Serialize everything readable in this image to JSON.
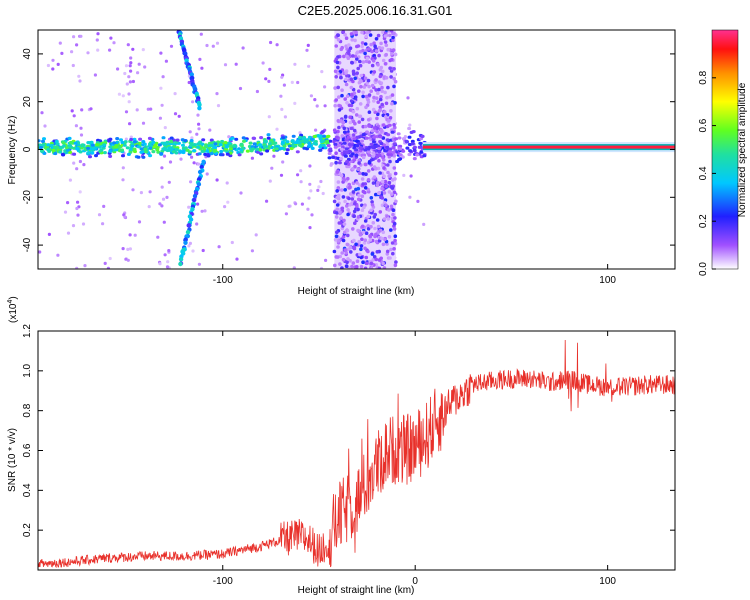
{
  "title": "C2E5.2025.006.16.31.G01",
  "chart_data": [
    {
      "type": "heatmap",
      "xlabel": "Height of straight line (km)",
      "ylabel": "Frequency (Hz)",
      "xlim": [
        -196,
        135
      ],
      "ylim": [
        -50,
        50
      ],
      "xticks": [
        -100,
        100
      ],
      "xtick_labels": [
        "-100",
        "100"
      ],
      "yticks": [
        -40,
        -20,
        0,
        20,
        40
      ],
      "ytick_labels": [
        "-40",
        "-20",
        "0",
        "20",
        "40"
      ],
      "features": [
        {
          "name": "central-band",
          "x_from": -196,
          "x_to": 5,
          "frequency": 1,
          "note": "noisy band around 0 Hz rising to ~4 Hz near -50 km"
        },
        {
          "name": "tone",
          "x_from": 4,
          "x_to": 135,
          "frequency": 1,
          "amplitude": 1.0
        },
        {
          "name": "diagonal-streak-upper",
          "x_from": -123,
          "x_to": -112,
          "f_from": 50,
          "f_to": 18
        },
        {
          "name": "diagonal-streak-lower",
          "x_from": -110,
          "x_to": -122,
          "f_from": -5,
          "f_to": -48
        },
        {
          "name": "broadband-noise",
          "x_from": -42,
          "x_to": -10,
          "note": "broadband speckle over all frequencies"
        }
      ],
      "colorbar": {
        "label": "Normalized spectral amplitude",
        "range": [
          0,
          1
        ],
        "ticks": [
          0.0,
          0.2,
          0.4,
          0.6,
          0.8
        ],
        "tick_labels": [
          "0.0",
          "0.2",
          "0.4",
          "0.6",
          "0.8"
        ]
      }
    },
    {
      "type": "line",
      "xlabel": "Height of straight line (km)",
      "ylabel": "SNR (10 * v/v)",
      "yscale_label": "(x10",
      "yscale_exp": "4",
      "yscale_close": ")",
      "xlim": [
        -196,
        135
      ],
      "ylim": [
        0,
        12000
      ],
      "xticks": [
        -100,
        0,
        100
      ],
      "xtick_labels": [
        "-100",
        "0",
        "100"
      ],
      "yticks": [
        2000,
        4000,
        6000,
        8000,
        10000,
        12000
      ],
      "ytick_labels": [
        "0.2",
        "0.4",
        "0.6",
        "0.8",
        "1.0",
        "1.2"
      ],
      "color": "#e8302a",
      "series": [
        {
          "name": "SNR",
          "x": [
            -196,
            -180,
            -160,
            -140,
            -120,
            -100,
            -90,
            -80,
            -70,
            -60,
            -55,
            -50,
            -45,
            -40,
            -35,
            -30,
            -25,
            -20,
            -15,
            -10,
            -5,
            0,
            5,
            10,
            15,
            20,
            25,
            30,
            40,
            50,
            60,
            70,
            80,
            90,
            100,
            110,
            120,
            135
          ],
          "y": [
            300,
            400,
            600,
            700,
            700,
            800,
            1000,
            1200,
            1500,
            1700,
            1500,
            900,
            1500,
            2600,
            3100,
            3500,
            4400,
            5200,
            5900,
            6100,
            6000,
            6200,
            6600,
            7300,
            7900,
            8500,
            8900,
            9300,
            9500,
            9600,
            9600,
            9400,
            9600,
            9300,
            9200,
            9200,
            9300,
            9300
          ]
        }
      ]
    }
  ]
}
